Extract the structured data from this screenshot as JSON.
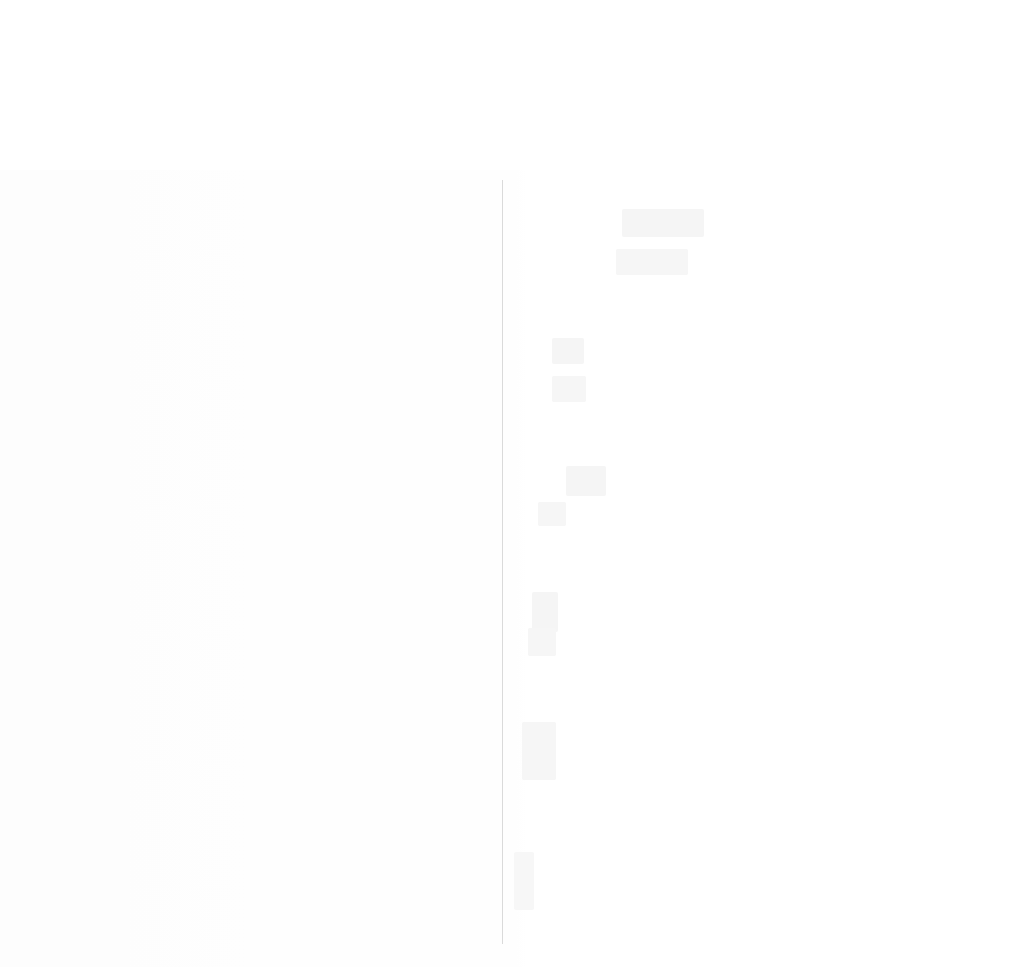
{
  "screen": {
    "background": "#ffffff",
    "divider_color": "#dadada",
    "placeholder_color": "#f6f6f6"
  },
  "header": {
    "title": ""
  },
  "left_panel": {
    "text": ""
  },
  "right_panel": {
    "text": ""
  }
}
